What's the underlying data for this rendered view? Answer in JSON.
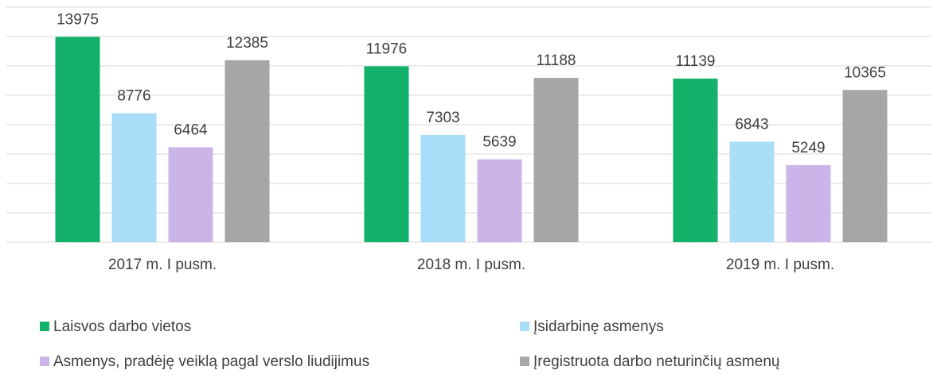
{
  "chart_data": {
    "type": "bar",
    "categories": [
      "2017 m. I pusm.",
      "2018 m. I pusm.",
      "2019 m. I pusm."
    ],
    "series": [
      {
        "name": "Laisvos darbo vietos",
        "color": "#13b26b",
        "values": [
          13975,
          11976,
          11139
        ]
      },
      {
        "name": "Įsidarbinę asmenys",
        "color": "#a9ddf8",
        "values": [
          8776,
          7303,
          6843
        ]
      },
      {
        "name": "Asmenys, pradėję veiklą pagal verslo liudijimus",
        "color": "#cbb5e8",
        "values": [
          6464,
          5639,
          5249
        ]
      },
      {
        "name": "Įregistruota darbo neturinčių asmenų",
        "color": "#a6a6a9",
        "values": [
          12385,
          11188,
          10365
        ]
      }
    ],
    "ylim": [
      0,
      16000
    ],
    "yticks": [
      0,
      2000,
      4000,
      6000,
      8000,
      10000,
      12000,
      14000,
      16000
    ],
    "grid": true
  }
}
